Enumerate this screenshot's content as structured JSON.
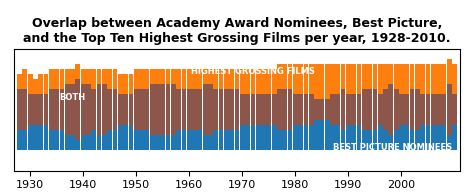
{
  "chart_data": {
    "type": "bar",
    "title": "Overlap between Academy Award Nominees, Best Picture,\nand the Top Ten Highest Grossing Films per year, 1928-2010.",
    "x": [
      1928,
      1929,
      1930,
      1931,
      1932,
      1933,
      1934,
      1935,
      1936,
      1937,
      1938,
      1939,
      1940,
      1941,
      1942,
      1943,
      1944,
      1945,
      1946,
      1947,
      1948,
      1949,
      1950,
      1951,
      1952,
      1953,
      1954,
      1955,
      1956,
      1957,
      1958,
      1959,
      1960,
      1961,
      1962,
      1963,
      1964,
      1965,
      1966,
      1967,
      1968,
      1969,
      1970,
      1971,
      1972,
      1973,
      1974,
      1975,
      1976,
      1977,
      1978,
      1979,
      1980,
      1981,
      1982,
      1983,
      1984,
      1985,
      1986,
      1987,
      1988,
      1989,
      1990,
      1991,
      1992,
      1993,
      1994,
      1995,
      1996,
      1997,
      1998,
      1999,
      2000,
      2001,
      2002,
      2003,
      2004,
      2005,
      2006,
      2007,
      2008,
      2009,
      2010
    ],
    "series": [
      {
        "name": "HIGHEST GROSSING FILMS",
        "values": [
          7,
          8,
          7,
          6,
          7,
          7,
          8,
          8,
          8,
          8,
          8,
          9,
          8,
          8,
          8,
          8,
          8,
          8,
          8,
          7,
          7,
          7,
          8,
          8,
          8,
          8,
          8,
          8,
          8,
          8,
          8,
          8,
          8,
          8,
          8,
          8,
          8,
          8,
          8,
          8,
          8,
          8,
          8,
          8,
          8,
          8,
          8,
          8,
          8,
          9,
          9,
          9,
          9,
          9,
          9,
          9,
          9,
          9,
          9,
          9,
          9,
          9,
          9,
          9,
          9,
          9,
          9,
          9,
          9,
          9,
          9,
          9,
          9,
          9,
          9,
          9,
          9,
          9,
          9,
          9,
          9,
          10,
          9
        ]
      },
      {
        "name": "BOTH",
        "values": [
          4,
          4,
          3,
          3,
          3,
          3,
          4,
          4,
          4,
          5,
          5,
          6,
          5,
          5,
          4,
          5,
          5,
          4,
          4,
          3,
          3,
          3,
          4,
          4,
          4,
          5,
          5,
          5,
          5,
          5,
          4,
          4,
          4,
          4,
          4,
          5,
          5,
          4,
          4,
          4,
          4,
          4,
          3,
          3,
          3,
          3,
          3,
          3,
          3,
          4,
          4,
          4,
          3,
          3,
          3,
          3,
          2,
          2,
          2,
          3,
          3,
          4,
          3,
          3,
          3,
          4,
          4,
          4,
          3,
          4,
          5,
          4,
          3,
          3,
          4,
          4,
          3,
          3,
          3,
          3,
          3,
          5,
          3
        ]
      },
      {
        "name": "BEST PICTURE NOMINEES",
        "values": [
          -8,
          -8,
          -8,
          -8,
          -8,
          -8,
          -8,
          -8,
          -8,
          -8,
          -8,
          -8,
          -8,
          -8,
          -8,
          -8,
          -8,
          -8,
          -8,
          -8,
          -8,
          -8,
          -8,
          -8,
          -8,
          -8,
          -8,
          -8,
          -8,
          -8,
          -8,
          -8,
          -8,
          -8,
          -8,
          -8,
          -8,
          -8,
          -8,
          -8,
          -8,
          -8,
          -8,
          -8,
          -8,
          -8,
          -8,
          -8,
          -8,
          -8,
          -8,
          -8,
          -8,
          -8,
          -8,
          -8,
          -8,
          -8,
          -8,
          -8,
          -8,
          -8,
          -8,
          -8,
          -8,
          -8,
          -8,
          -8,
          -8,
          -8,
          -8,
          -8,
          -8,
          -8,
          -8,
          -8,
          -8,
          -8,
          -8,
          -8,
          -8,
          -8,
          -8
        ]
      },
      {
        "values": [
          -4,
          -4,
          -3,
          -3,
          -3,
          -3,
          -4,
          -4,
          -4,
          -5,
          -5,
          -6,
          -5,
          -5,
          -4,
          -5,
          -5,
          -4,
          -4,
          -3,
          -3,
          -3,
          -4,
          -4,
          -4,
          -5,
          -5,
          -5,
          -5,
          -5,
          -4,
          -4,
          -4,
          -4,
          -4,
          -5,
          -5,
          -4,
          -4,
          -4,
          -4,
          -4,
          -3,
          -3,
          -3,
          -3,
          -3,
          -3,
          -3,
          -4,
          -4,
          -4,
          -3,
          -3,
          -3,
          -3,
          -2,
          -2,
          -2,
          -3,
          -3,
          -4,
          -3,
          -3,
          -3,
          -4,
          -4,
          -4,
          -3,
          -4,
          -5,
          -4,
          -3,
          -3,
          -4,
          -4,
          -3,
          -3,
          -3,
          -3,
          -3,
          -5,
          -3
        ]
      }
    ],
    "xlim": [
      1927,
      2011
    ],
    "xticks": [
      1930,
      1940,
      1950,
      1960,
      1970,
      1980,
      1990,
      2000
    ],
    "ylim": [
      -12,
      12
    ],
    "yticks": [],
    "tick_labels": "x"
  }
}
